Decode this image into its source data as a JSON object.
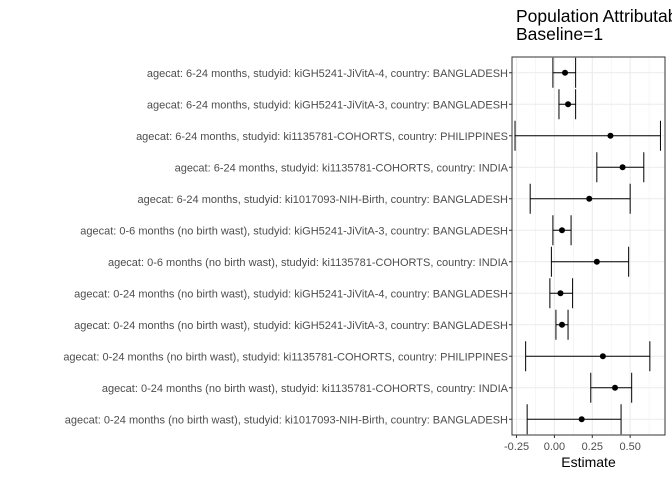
{
  "chart_data": {
    "type": "forest",
    "title_lines": [
      "Population Attributable Fraction",
      "Baseline=1"
    ],
    "xlabel": "Estimate",
    "ylabel": "",
    "xlim": [
      -0.28,
      0.73
    ],
    "x_ticks": [
      -0.25,
      0.0,
      0.25,
      0.5
    ],
    "x_tick_labels": [
      "-0.25",
      "0.00",
      "0.25",
      "0.50"
    ],
    "grid": true,
    "categories": [
      "agecat: 6-24 months, studyid: kiGH5241-JiVitA-4, country: BANGLADESH",
      "agecat: 6-24 months, studyid: kiGH5241-JiVitA-3, country: BANGLADESH",
      "agecat: 6-24 months, studyid: ki1135781-COHORTS, country: PHILIPPINES",
      "agecat: 6-24 months, studyid: ki1135781-COHORTS, country: INDIA",
      "agecat: 6-24 months, studyid: ki1017093-NIH-Birth, country: BANGLADESH",
      "agecat: 0-6 months (no birth wast), studyid: kiGH5241-JiVitA-3, country: BANGLADESH",
      "agecat: 0-6 months (no birth wast), studyid: ki1135781-COHORTS, country: INDIA",
      "agecat: 0-24 months (no birth wast), studyid: kiGH5241-JiVitA-4, country: BANGLADESH",
      "agecat: 0-24 months (no birth wast), studyid: kiGH5241-JiVitA-3, country: BANGLADESH",
      "agecat: 0-24 months (no birth wast), studyid: ki1135781-COHORTS, country: PHILIPPINES",
      "agecat: 0-24 months (no birth wast), studyid: ki1135781-COHORTS, country: INDIA",
      "agecat: 0-24 months (no birth wast), studyid: ki1017093-NIH-Birth, country: BANGLADESH"
    ],
    "estimates": [
      0.07,
      0.09,
      0.37,
      0.45,
      0.23,
      0.05,
      0.28,
      0.04,
      0.05,
      0.32,
      0.4,
      0.18
    ],
    "ci_lower": [
      -0.01,
      0.03,
      -0.26,
      0.28,
      -0.16,
      -0.01,
      -0.02,
      -0.03,
      0.01,
      -0.19,
      0.24,
      -0.18
    ],
    "ci_upper": [
      0.14,
      0.14,
      0.7,
      0.59,
      0.5,
      0.11,
      0.49,
      0.12,
      0.09,
      0.63,
      0.51,
      0.44
    ]
  }
}
